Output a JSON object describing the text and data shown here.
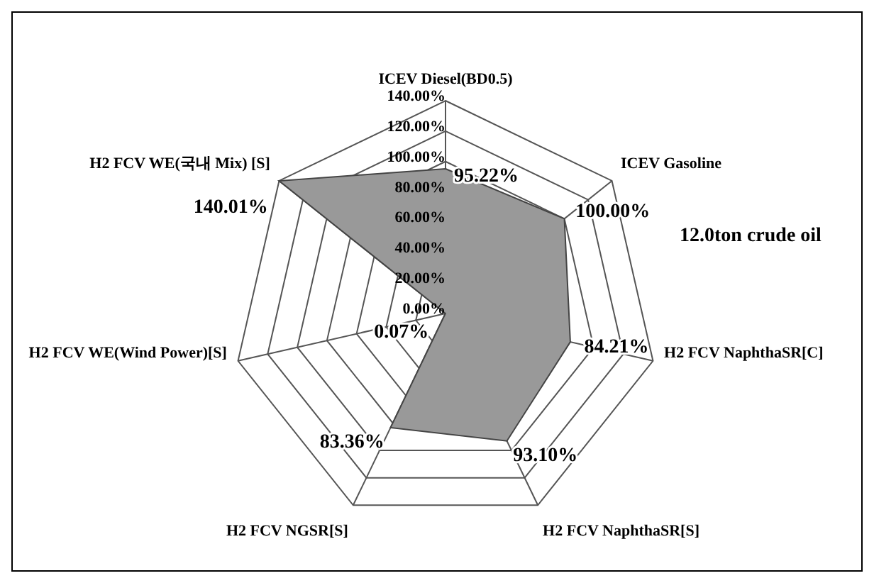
{
  "chart_data": {
    "type": "radar",
    "categories": [
      "ICEV Diesel(BD0.5)",
      "ICEV Gasoline",
      "H2 FCV NaphthaSR[C]",
      "H2 FCV NaphthaSR[S]",
      "H2 FCV NGSR[S]",
      "H2 FCV WE(Wind Power)[S]",
      "H2 FCV WE(국내 Mix) [S]"
    ],
    "series": [
      {
        "type": "radar",
        "color": "#999999",
        "values": [
          95.22,
          100.0,
          84.21,
          93.1,
          83.36,
          0.07,
          140.01
        ],
        "value_labels": [
          "95.22%",
          "100.00%",
          "84.21%",
          "93.10%",
          "83.36%",
          "0.07%",
          "140.01%"
        ]
      }
    ],
    "ylim": [
      0,
      140.01
    ],
    "yticks": [
      {
        "value": 0,
        "label": "0.00%"
      },
      {
        "value": 20,
        "label": "20.00%"
      },
      {
        "value": 40,
        "label": "40.00%"
      },
      {
        "value": 60,
        "label": "60.00%"
      },
      {
        "value": 80,
        "label": "80.00%"
      },
      {
        "value": 100,
        "label": "100.00%"
      },
      {
        "value": 120,
        "label": "120.00%"
      },
      {
        "value": 140,
        "label": "140.00%"
      }
    ],
    "grid": true,
    "legend": false,
    "marker": "none",
    "annotations": [
      "12.0ton crude oil"
    ]
  }
}
